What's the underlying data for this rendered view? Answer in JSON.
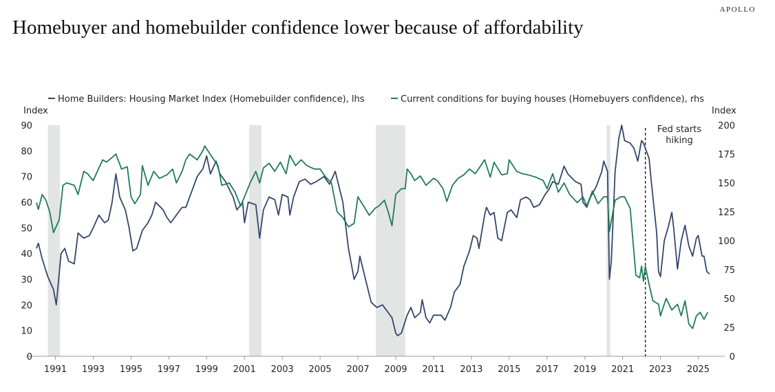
{
  "brand": "APOLLO",
  "chart_data": {
    "type": "line",
    "title": "Homebuyer and homebuilder confidence lower because of affordability",
    "ylabel_left": "Index",
    "ylabel_right": "Index",
    "ylim_left": [
      0,
      90
    ],
    "ylim_right": [
      0,
      200
    ],
    "xlim": [
      1990,
      2026.4
    ],
    "yticks_left": [
      0,
      10,
      20,
      30,
      40,
      50,
      60,
      70,
      80,
      90
    ],
    "yticks_right": [
      0,
      25,
      50,
      75,
      100,
      125,
      150,
      175,
      200
    ],
    "xticks": [
      1991,
      1993,
      1995,
      1997,
      1999,
      2001,
      2003,
      2005,
      2007,
      2009,
      2011,
      2013,
      2015,
      2017,
      2019,
      2021,
      2023,
      2025
    ],
    "legend_placement": "top",
    "recessions": [
      [
        1990.6,
        1991.25
      ],
      [
        2001.25,
        2001.9
      ],
      [
        2007.95,
        2009.5
      ],
      [
        2020.15,
        2020.35
      ]
    ],
    "annotation": {
      "x": 2022.2,
      "lines": [
        "Fed starts",
        "hiking"
      ]
    },
    "colors": {
      "builders": "#33456b",
      "buyers": "#1f7a5a",
      "recession": "#e3e4e4"
    },
    "series": [
      {
        "name": "Home Builders: Housing Market Index (Homebuilder confidence), lhs",
        "axis": "left",
        "x": [
          1990.0,
          1990.1,
          1990.3,
          1990.6,
          1990.9,
          1991.05,
          1991.3,
          1991.5,
          1991.7,
          1992.0,
          1992.2,
          1992.5,
          1992.8,
          1993.0,
          1993.3,
          1993.6,
          1993.8,
          1994.0,
          1994.2,
          1994.4,
          1994.7,
          1994.9,
          1995.1,
          1995.3,
          1995.6,
          1995.9,
          1996.1,
          1996.3,
          1996.7,
          1996.9,
          1997.1,
          1997.4,
          1997.7,
          1997.9,
          1998.2,
          1998.5,
          1998.8,
          1999.0,
          1999.2,
          1999.5,
          1999.7,
          2000.0,
          2000.4,
          2000.6,
          2000.9,
          2001.0,
          2001.2,
          2001.6,
          2001.8,
          2002.0,
          2002.3,
          2002.6,
          2002.8,
          2003.0,
          2003.3,
          2003.4,
          2003.6,
          2003.9,
          2004.2,
          2004.5,
          2004.8,
          2005.2,
          2005.5,
          2005.8,
          2006.0,
          2006.2,
          2006.5,
          2006.8,
          2007.0,
          2007.1,
          2007.4,
          2007.7,
          2008.0,
          2008.3,
          2008.6,
          2008.8,
          2009.0,
          2009.1,
          2009.3,
          2009.6,
          2009.8,
          2010.0,
          2010.3,
          2010.4,
          2010.6,
          2010.8,
          2011.0,
          2011.4,
          2011.6,
          2011.9,
          2012.1,
          2012.4,
          2012.6,
          2012.9,
          2013.1,
          2013.3,
          2013.4,
          2013.7,
          2013.8,
          2014.0,
          2014.2,
          2014.4,
          2014.6,
          2014.9,
          2015.1,
          2015.4,
          2015.6,
          2015.9,
          2016.1,
          2016.3,
          2016.6,
          2016.9,
          2017.1,
          2017.3,
          2017.6,
          2017.9,
          2018.1,
          2018.5,
          2018.8,
          2018.9,
          2019.1,
          2019.3,
          2019.6,
          2019.9,
          2020.0,
          2020.2,
          2020.3,
          2020.4,
          2020.6,
          2020.8,
          2020.95,
          2021.1,
          2021.4,
          2021.6,
          2021.8,
          2022.0,
          2022.1,
          2022.4,
          2022.5,
          2022.8,
          2022.9,
          2023.0,
          2023.2,
          2023.4,
          2023.6,
          2023.7,
          2023.9,
          2024.1,
          2024.3,
          2024.5,
          2024.7,
          2024.9,
          2025.0,
          2025.2,
          2025.3,
          2025.45,
          2025.6
        ],
        "values": [
          42,
          44,
          38,
          31,
          26,
          20,
          40,
          42,
          37,
          36,
          48,
          46,
          47,
          50,
          55,
          52,
          53,
          60,
          71,
          62,
          57,
          50,
          41,
          42,
          49,
          52,
          55,
          60,
          57,
          54,
          52,
          55,
          58,
          58,
          64,
          70,
          73,
          78,
          71,
          76,
          71,
          68,
          62,
          57,
          60,
          52,
          60,
          59,
          46,
          57,
          62,
          61,
          55,
          63,
          62,
          55,
          62,
          68,
          69,
          67,
          68,
          70,
          67,
          72,
          66,
          60,
          42,
          30,
          33,
          39,
          30,
          21,
          19,
          20,
          17,
          15,
          9,
          8,
          9,
          16,
          19,
          15,
          17,
          22,
          15,
          13,
          16,
          16,
          14,
          19,
          25,
          28,
          35,
          41,
          47,
          46,
          42,
          55,
          58,
          55,
          56,
          46,
          45,
          56,
          57,
          54,
          61,
          62,
          61,
          58,
          59,
          63,
          65,
          68,
          67,
          74,
          71,
          68,
          67,
          60,
          58,
          62,
          66,
          72,
          76,
          72,
          30,
          37,
          72,
          85,
          90,
          84,
          83,
          81,
          76,
          84,
          83,
          77,
          69,
          48,
          33,
          31,
          45,
          50,
          56,
          50,
          34,
          45,
          51,
          43,
          39,
          46,
          47,
          39,
          39,
          33,
          32
        ]
      },
      {
        "name": "Current conditions for buying houses (Homebuyers confidence), rhs",
        "axis": "right",
        "x": [
          1990.0,
          1990.1,
          1990.3,
          1990.5,
          1990.7,
          1990.9,
          1991.2,
          1991.4,
          1991.6,
          1992.0,
          1992.2,
          1992.5,
          1992.7,
          1993.0,
          1993.3,
          1993.5,
          1993.7,
          1994.0,
          1994.2,
          1994.5,
          1994.8,
          1995.0,
          1995.2,
          1995.5,
          1995.6,
          1995.9,
          1996.2,
          1996.5,
          1996.9,
          1997.2,
          1997.4,
          1997.7,
          1997.9,
          1998.1,
          1998.5,
          1998.8,
          1998.9,
          1999.3,
          1999.6,
          1999.8,
          2000.2,
          2000.5,
          2000.8,
          2001.0,
          2001.3,
          2001.6,
          2001.8,
          2002.0,
          2002.3,
          2002.6,
          2002.9,
          2003.2,
          2003.4,
          2003.7,
          2004.0,
          2004.3,
          2004.7,
          2005.0,
          2005.3,
          2005.6,
          2005.9,
          2006.2,
          2006.5,
          2006.8,
          2007.0,
          2007.3,
          2007.6,
          2007.9,
          2008.1,
          2008.4,
          2008.6,
          2008.8,
          2009.0,
          2009.3,
          2009.5,
          2009.6,
          2009.8,
          2010.0,
          2010.3,
          2010.6,
          2011.0,
          2011.2,
          2011.5,
          2011.7,
          2012.0,
          2012.3,
          2012.6,
          2012.9,
          2013.2,
          2013.5,
          2013.7,
          2014.0,
          2014.2,
          2014.6,
          2014.9,
          2015.0,
          2015.4,
          2015.7,
          2016.0,
          2016.4,
          2016.8,
          2017.0,
          2017.3,
          2017.6,
          2017.9,
          2018.2,
          2018.6,
          2018.9,
          2019.1,
          2019.4,
          2019.7,
          2020.0,
          2020.2,
          2020.3,
          2020.6,
          2020.9,
          2021.1,
          2021.4,
          2021.7,
          2021.9,
          2022.0,
          2022.1,
          2022.2,
          2022.4,
          2022.6,
          2022.9,
          2023.0,
          2023.3,
          2023.6,
          2023.9,
          2024.1,
          2024.3,
          2024.5,
          2024.7,
          2024.9,
          2025.1,
          2025.3,
          2025.5
        ],
        "values": [
          133,
          127,
          140,
          135,
          125,
          107,
          118,
          148,
          150,
          148,
          140,
          160,
          158,
          152,
          163,
          170,
          168,
          172,
          175,
          162,
          164,
          138,
          132,
          140,
          165,
          148,
          160,
          154,
          157,
          162,
          150,
          160,
          170,
          175,
          170,
          178,
          182,
          172,
          165,
          148,
          150,
          142,
          130,
          138,
          150,
          160,
          150,
          163,
          167,
          160,
          168,
          158,
          174,
          165,
          170,
          165,
          162,
          162,
          155,
          150,
          125,
          120,
          112,
          115,
          138,
          130,
          122,
          128,
          130,
          135,
          125,
          113,
          140,
          145,
          145,
          162,
          158,
          152,
          156,
          148,
          154,
          152,
          145,
          134,
          148,
          154,
          157,
          162,
          158,
          165,
          170,
          155,
          168,
          157,
          158,
          170,
          160,
          158,
          157,
          155,
          152,
          145,
          158,
          142,
          150,
          140,
          133,
          138,
          130,
          143,
          132,
          138,
          138,
          108,
          135,
          138,
          138,
          128,
          70,
          68,
          78,
          65,
          78,
          62,
          48,
          45,
          35,
          50,
          40,
          45,
          35,
          48,
          28,
          24,
          35,
          38,
          32,
          38
        ]
      }
    ]
  }
}
